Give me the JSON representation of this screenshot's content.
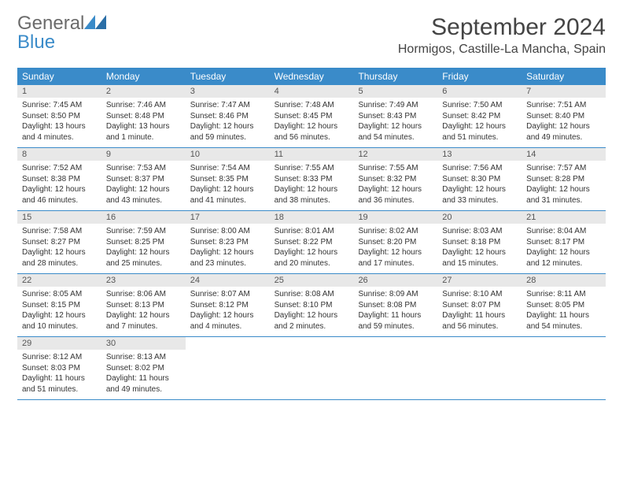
{
  "brand": {
    "general": "General",
    "blue": "Blue"
  },
  "title": "September 2024",
  "location": "Hormigos, Castille-La Mancha, Spain",
  "colors": {
    "accent": "#3a8bc9",
    "daynum_bg": "#e8e8e8",
    "text": "#333333",
    "logo_grey": "#6b6b6b"
  },
  "dayHeaders": [
    "Sunday",
    "Monday",
    "Tuesday",
    "Wednesday",
    "Thursday",
    "Friday",
    "Saturday"
  ],
  "weeks": [
    [
      {
        "n": "1",
        "sr": "Sunrise: 7:45 AM",
        "ss": "Sunset: 8:50 PM",
        "dl": "Daylight: 13 hours and 4 minutes."
      },
      {
        "n": "2",
        "sr": "Sunrise: 7:46 AM",
        "ss": "Sunset: 8:48 PM",
        "dl": "Daylight: 13 hours and 1 minute."
      },
      {
        "n": "3",
        "sr": "Sunrise: 7:47 AM",
        "ss": "Sunset: 8:46 PM",
        "dl": "Daylight: 12 hours and 59 minutes."
      },
      {
        "n": "4",
        "sr": "Sunrise: 7:48 AM",
        "ss": "Sunset: 8:45 PM",
        "dl": "Daylight: 12 hours and 56 minutes."
      },
      {
        "n": "5",
        "sr": "Sunrise: 7:49 AM",
        "ss": "Sunset: 8:43 PM",
        "dl": "Daylight: 12 hours and 54 minutes."
      },
      {
        "n": "6",
        "sr": "Sunrise: 7:50 AM",
        "ss": "Sunset: 8:42 PM",
        "dl": "Daylight: 12 hours and 51 minutes."
      },
      {
        "n": "7",
        "sr": "Sunrise: 7:51 AM",
        "ss": "Sunset: 8:40 PM",
        "dl": "Daylight: 12 hours and 49 minutes."
      }
    ],
    [
      {
        "n": "8",
        "sr": "Sunrise: 7:52 AM",
        "ss": "Sunset: 8:38 PM",
        "dl": "Daylight: 12 hours and 46 minutes."
      },
      {
        "n": "9",
        "sr": "Sunrise: 7:53 AM",
        "ss": "Sunset: 8:37 PM",
        "dl": "Daylight: 12 hours and 43 minutes."
      },
      {
        "n": "10",
        "sr": "Sunrise: 7:54 AM",
        "ss": "Sunset: 8:35 PM",
        "dl": "Daylight: 12 hours and 41 minutes."
      },
      {
        "n": "11",
        "sr": "Sunrise: 7:55 AM",
        "ss": "Sunset: 8:33 PM",
        "dl": "Daylight: 12 hours and 38 minutes."
      },
      {
        "n": "12",
        "sr": "Sunrise: 7:55 AM",
        "ss": "Sunset: 8:32 PM",
        "dl": "Daylight: 12 hours and 36 minutes."
      },
      {
        "n": "13",
        "sr": "Sunrise: 7:56 AM",
        "ss": "Sunset: 8:30 PM",
        "dl": "Daylight: 12 hours and 33 minutes."
      },
      {
        "n": "14",
        "sr": "Sunrise: 7:57 AM",
        "ss": "Sunset: 8:28 PM",
        "dl": "Daylight: 12 hours and 31 minutes."
      }
    ],
    [
      {
        "n": "15",
        "sr": "Sunrise: 7:58 AM",
        "ss": "Sunset: 8:27 PM",
        "dl": "Daylight: 12 hours and 28 minutes."
      },
      {
        "n": "16",
        "sr": "Sunrise: 7:59 AM",
        "ss": "Sunset: 8:25 PM",
        "dl": "Daylight: 12 hours and 25 minutes."
      },
      {
        "n": "17",
        "sr": "Sunrise: 8:00 AM",
        "ss": "Sunset: 8:23 PM",
        "dl": "Daylight: 12 hours and 23 minutes."
      },
      {
        "n": "18",
        "sr": "Sunrise: 8:01 AM",
        "ss": "Sunset: 8:22 PM",
        "dl": "Daylight: 12 hours and 20 minutes."
      },
      {
        "n": "19",
        "sr": "Sunrise: 8:02 AM",
        "ss": "Sunset: 8:20 PM",
        "dl": "Daylight: 12 hours and 17 minutes."
      },
      {
        "n": "20",
        "sr": "Sunrise: 8:03 AM",
        "ss": "Sunset: 8:18 PM",
        "dl": "Daylight: 12 hours and 15 minutes."
      },
      {
        "n": "21",
        "sr": "Sunrise: 8:04 AM",
        "ss": "Sunset: 8:17 PM",
        "dl": "Daylight: 12 hours and 12 minutes."
      }
    ],
    [
      {
        "n": "22",
        "sr": "Sunrise: 8:05 AM",
        "ss": "Sunset: 8:15 PM",
        "dl": "Daylight: 12 hours and 10 minutes."
      },
      {
        "n": "23",
        "sr": "Sunrise: 8:06 AM",
        "ss": "Sunset: 8:13 PM",
        "dl": "Daylight: 12 hours and 7 minutes."
      },
      {
        "n": "24",
        "sr": "Sunrise: 8:07 AM",
        "ss": "Sunset: 8:12 PM",
        "dl": "Daylight: 12 hours and 4 minutes."
      },
      {
        "n": "25",
        "sr": "Sunrise: 8:08 AM",
        "ss": "Sunset: 8:10 PM",
        "dl": "Daylight: 12 hours and 2 minutes."
      },
      {
        "n": "26",
        "sr": "Sunrise: 8:09 AM",
        "ss": "Sunset: 8:08 PM",
        "dl": "Daylight: 11 hours and 59 minutes."
      },
      {
        "n": "27",
        "sr": "Sunrise: 8:10 AM",
        "ss": "Sunset: 8:07 PM",
        "dl": "Daylight: 11 hours and 56 minutes."
      },
      {
        "n": "28",
        "sr": "Sunrise: 8:11 AM",
        "ss": "Sunset: 8:05 PM",
        "dl": "Daylight: 11 hours and 54 minutes."
      }
    ],
    [
      {
        "n": "29",
        "sr": "Sunrise: 8:12 AM",
        "ss": "Sunset: 8:03 PM",
        "dl": "Daylight: 11 hours and 51 minutes."
      },
      {
        "n": "30",
        "sr": "Sunrise: 8:13 AM",
        "ss": "Sunset: 8:02 PM",
        "dl": "Daylight: 11 hours and 49 minutes."
      },
      {
        "empty": true
      },
      {
        "empty": true
      },
      {
        "empty": true
      },
      {
        "empty": true
      },
      {
        "empty": true
      }
    ]
  ]
}
